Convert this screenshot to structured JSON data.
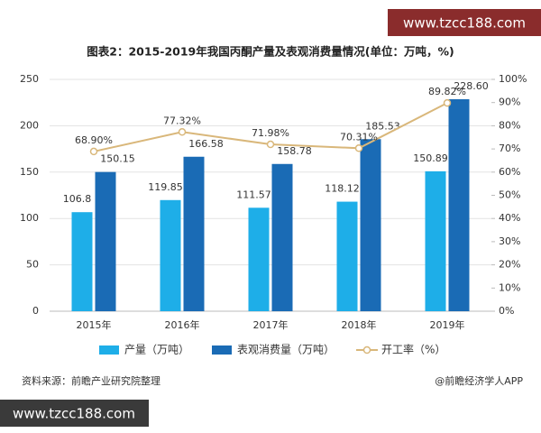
{
  "chart_data": {
    "type": "bar-line",
    "title": "图表2：2015-2019年我国丙酮产量及表观消费量情况(单位：万吨，%)",
    "categories": [
      "2015年",
      "2016年",
      "2017年",
      "2018年",
      "2019年"
    ],
    "series": [
      {
        "name": "产量（万吨）",
        "type": "bar",
        "color": "#1eaee8",
        "values": [
          106.8,
          119.85,
          111.57,
          118.12,
          150.89
        ]
      },
      {
        "name": "表观消费量（万吨）",
        "type": "bar",
        "color": "#1a6bb5",
        "values": [
          150.15,
          166.58,
          158.78,
          185.53,
          228.6
        ],
        "value_labels": [
          "150.15",
          "166.58",
          "158.78",
          "185.53",
          "228.60"
        ]
      },
      {
        "name": "开工率（%）",
        "type": "line",
        "axis": "y2",
        "color": "#d9b77a",
        "values": [
          68.9,
          77.32,
          71.98,
          70.31,
          89.82
        ],
        "value_labels": [
          "68.90%",
          "77.32%",
          "71.98%",
          "70.31%",
          "89.82%"
        ]
      }
    ],
    "ylim": [
      0,
      250
    ],
    "yticks": [
      0,
      50,
      100,
      150,
      200,
      250
    ],
    "y2lim": [
      0,
      100
    ],
    "y2ticks": [
      {
        "value": 0,
        "label": "0%"
      },
      {
        "value": 10,
        "label": "10%"
      },
      {
        "value": 20,
        "label": "20%"
      },
      {
        "value": 30,
        "label": "30%"
      },
      {
        "value": 40,
        "label": "40%"
      },
      {
        "value": 50,
        "label": "50%"
      },
      {
        "value": 60,
        "label": "60%"
      },
      {
        "value": 70,
        "label": "70%"
      },
      {
        "value": 80,
        "label": "80%"
      },
      {
        "value": 90,
        "label": "90%"
      },
      {
        "value": 100,
        "label": "100%"
      }
    ],
    "grid": true,
    "source": "资料来源：前瞻产业研究院整理",
    "credit": "@前瞻经济学人APP",
    "watermarks": [
      "www.tzcc188.com",
      "www.tzcc188.com"
    ]
  }
}
